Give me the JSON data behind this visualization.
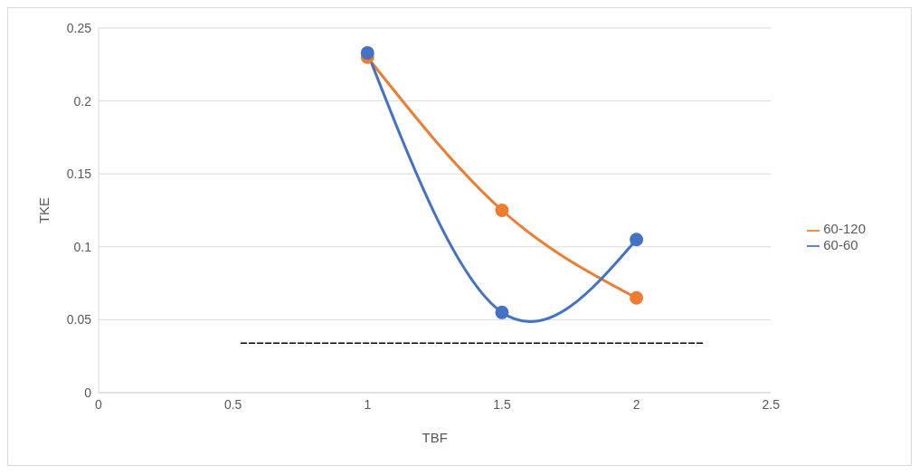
{
  "chart_data": {
    "type": "line",
    "xlabel": "TBF",
    "ylabel": "TKE",
    "xlim": [
      0,
      2.5
    ],
    "xticks": [
      0,
      0.5,
      1,
      1.5,
      2,
      2.5
    ],
    "ylim": [
      0,
      0.25
    ],
    "yticks": [
      0,
      0.05,
      0.1,
      0.15,
      0.2,
      0.25
    ],
    "grid": "y",
    "legend": "right",
    "marker": "circle",
    "line_style": "solid",
    "series": [
      {
        "name": "60-60",
        "color": "#4472c4",
        "x": [
          1,
          1.5,
          2
        ],
        "values": [
          0.233,
          0.055,
          0.105
        ]
      },
      {
        "name": "60-120",
        "color": "#ed7d31",
        "x": [
          1,
          1.5,
          2
        ],
        "values": [
          0.23,
          0.125,
          0.065
        ]
      },
      {
        "color": "#000000",
        "x": [
          0.53,
          2.25
        ],
        "values": [
          0.034,
          0.034
        ],
        "marker": "none",
        "line_style": "dashed"
      }
    ]
  }
}
